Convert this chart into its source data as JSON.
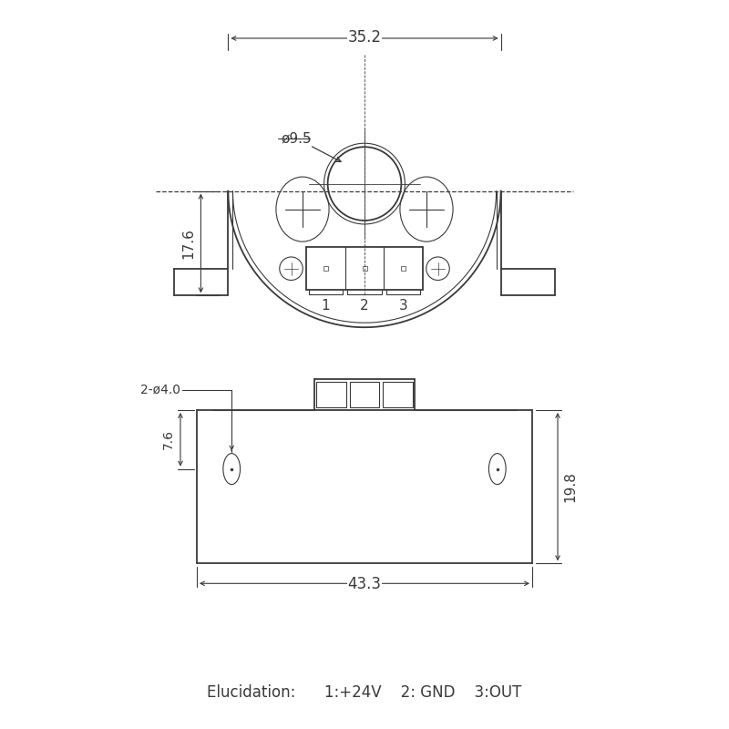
{
  "bg_color": "#ffffff",
  "lc": "#3a3a3a",
  "fig_w": 8.0,
  "fig_h": 8.0,
  "dpi": 100,
  "annotations": {
    "elucidation": "Elucidation:      1:+24V    2: GND    3:OUT"
  }
}
